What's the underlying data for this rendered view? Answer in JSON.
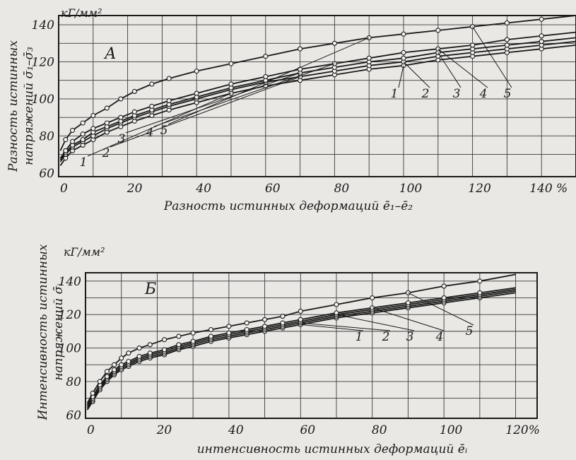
{
  "chart_data": [
    {
      "type": "line",
      "panel_label": "А",
      "y_unit": "кГ/мм²",
      "ylabel_line1": "Разность истинных",
      "ylabel_line2": "напряжений σ̄₁–σ̄₃",
      "xlabel": "Разность истинных деформаций ē₁–ē₂",
      "x_ticks": [
        "0",
        "20",
        "40",
        "60",
        "80",
        "100",
        "120",
        "140 %"
      ],
      "y_ticks": [
        "60",
        "80",
        "100",
        "120",
        "140"
      ],
      "xlim": [
        0,
        150
      ],
      "ylim": [
        58,
        145
      ],
      "grid": true,
      "series": [
        {
          "name": "1",
          "x": [
            0.5,
            2,
            4,
            7,
            10,
            14,
            18,
            22,
            27,
            32,
            40,
            50,
            60,
            70,
            80,
            90,
            100,
            110,
            120,
            130,
            140,
            150
          ],
          "y": [
            64,
            68,
            72,
            75,
            78,
            82,
            85,
            88,
            91,
            94,
            98,
            103,
            107,
            110,
            113,
            116,
            118,
            121,
            123,
            125,
            127,
            129
          ]
        },
        {
          "name": "2",
          "x": [
            0.5,
            2,
            4,
            7,
            10,
            14,
            18,
            22,
            27,
            32,
            40,
            50,
            60,
            70,
            80,
            90,
            100,
            110,
            120,
            130,
            140,
            150
          ],
          "y": [
            66,
            70,
            74,
            77,
            80,
            84,
            87,
            90,
            93,
            96,
            100,
            105,
            109,
            112,
            115,
            118,
            120,
            123,
            125,
            127,
            129,
            131
          ]
        },
        {
          "name": "3",
          "x": [
            0.5,
            2,
            4,
            7,
            10,
            14,
            18,
            22,
            27,
            32,
            40,
            50,
            60,
            70,
            80,
            90,
            100,
            110,
            120,
            130,
            140,
            150
          ],
          "y": [
            67,
            71,
            75,
            78,
            82,
            85,
            88,
            91,
            94,
            97,
            101,
            106,
            110,
            114,
            117,
            120,
            122,
            125,
            127,
            129,
            131,
            133
          ]
        },
        {
          "name": "4",
          "x": [
            0.5,
            2,
            4,
            7,
            10,
            14,
            18,
            22,
            27,
            32,
            40,
            50,
            60,
            70,
            80,
            90,
            100,
            110,
            120,
            130,
            140,
            150
          ],
          "y": [
            68,
            72,
            77,
            81,
            84,
            87,
            90,
            93,
            96,
            99,
            103,
            108,
            112,
            116,
            119,
            122,
            125,
            127,
            129,
            132,
            134,
            136
          ]
        },
        {
          "name": "5",
          "x": [
            0.5,
            2,
            4,
            7,
            10,
            14,
            18,
            22,
            27,
            32,
            40,
            50,
            60,
            70,
            80,
            90,
            100,
            110,
            120,
            130,
            140,
            150
          ],
          "y": [
            72,
            78,
            83,
            87,
            91,
            95,
            100,
            104,
            108,
            111,
            115,
            119,
            123,
            127,
            130,
            133,
            135,
            137,
            139,
            141,
            143,
            145
          ]
        }
      ]
    },
    {
      "type": "line",
      "panel_label": "Б",
      "y_unit": "кГ/мм²",
      "ylabel_line1": "Интенсивность истинных",
      "ylabel_line2": "напряжений σ̄ᵢ",
      "xlabel": "интенсивность истинных деформаций ēᵢ",
      "x_ticks": [
        "0",
        "20",
        "40",
        "60",
        "80",
        "100",
        "120%"
      ],
      "y_ticks": [
        "60",
        "80",
        "100",
        "120",
        "140"
      ],
      "xlim": [
        0,
        126
      ],
      "ylim": [
        58,
        145
      ],
      "grid": true,
      "series": [
        {
          "name": "1",
          "x": [
            0.5,
            2,
            4,
            6,
            8,
            10,
            12,
            15,
            18,
            22,
            26,
            30,
            35,
            40,
            45,
            50,
            55,
            60,
            70,
            80,
            90,
            100,
            110,
            120
          ],
          "y": [
            63,
            68,
            75,
            80,
            84,
            87,
            89,
            92,
            94,
            96,
            99,
            101,
            104,
            106,
            108,
            110,
            112,
            114,
            118,
            121,
            124,
            127,
            130,
            133
          ]
        },
        {
          "name": "2",
          "x": [
            0.5,
            2,
            4,
            6,
            8,
            10,
            12,
            15,
            18,
            22,
            26,
            30,
            35,
            40,
            45,
            50,
            55,
            60,
            70,
            80,
            90,
            100,
            110,
            120
          ],
          "y": [
            64,
            69,
            76,
            81,
            85,
            88,
            90,
            93,
            95,
            97,
            100,
            102,
            105,
            107,
            109,
            111,
            113,
            115,
            119,
            122,
            125,
            128,
            131,
            134
          ]
        },
        {
          "name": "3",
          "x": [
            0.5,
            2,
            4,
            6,
            8,
            10,
            12,
            15,
            18,
            22,
            26,
            30,
            35,
            40,
            45,
            50,
            55,
            60,
            70,
            80,
            90,
            100,
            110,
            120
          ],
          "y": [
            65,
            70,
            77,
            82,
            86,
            89,
            91,
            94,
            96,
            98,
            101,
            103,
            106,
            108,
            110,
            112,
            114,
            116,
            120,
            123,
            126,
            129,
            132,
            135
          ]
        },
        {
          "name": "4",
          "x": [
            0.5,
            2,
            4,
            6,
            8,
            10,
            12,
            15,
            18,
            22,
            26,
            30,
            35,
            40,
            45,
            50,
            55,
            60,
            70,
            80,
            90,
            100,
            110,
            120
          ],
          "y": [
            66,
            71,
            78,
            83,
            87,
            90,
            92,
            95,
            97,
            99,
            102,
            104,
            107,
            109,
            111,
            113,
            115,
            117,
            121,
            124,
            127,
            130,
            133,
            136
          ]
        },
        {
          "name": "5",
          "x": [
            0.5,
            2,
            4,
            6,
            8,
            10,
            12,
            15,
            18,
            22,
            26,
            30,
            35,
            40,
            45,
            50,
            55,
            60,
            70,
            80,
            90,
            100,
            110,
            120
          ],
          "y": [
            67,
            73,
            80,
            86,
            90,
            94,
            97,
            100,
            102,
            105,
            107,
            109,
            111,
            113,
            115,
            117,
            119,
            122,
            126,
            130,
            133,
            137,
            140,
            144
          ]
        }
      ]
    }
  ]
}
